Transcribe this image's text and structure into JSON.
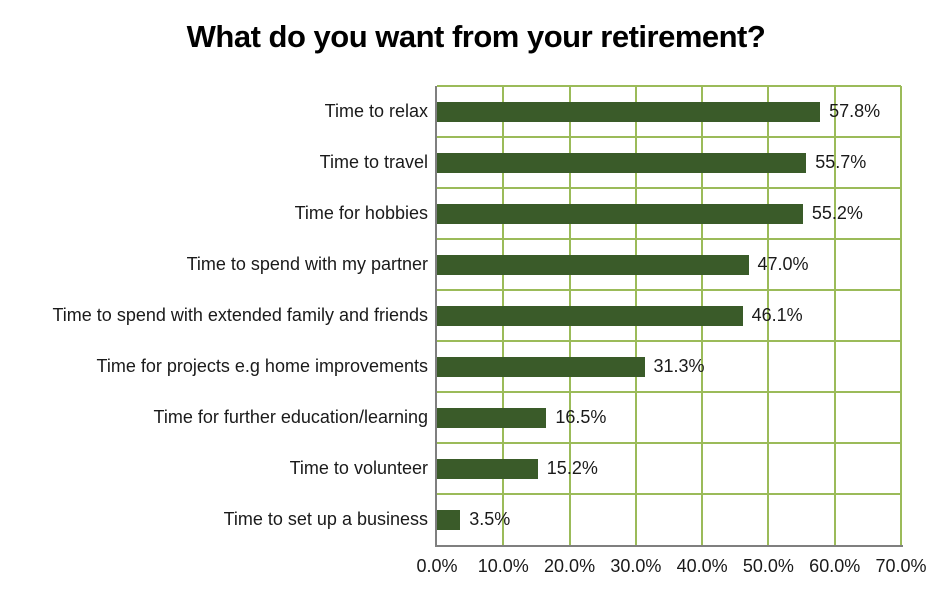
{
  "chart_data": {
    "type": "bar",
    "orientation": "horizontal",
    "title": "What do you want from your retirement?",
    "categories": [
      "Time to relax",
      "Time to travel",
      "Time for hobbies",
      "Time to spend with my partner",
      "Time to spend with extended family and friends",
      "Time for projects e.g home improvements",
      "Time for further education/learning",
      "Time to volunteer",
      "Time to set up a business"
    ],
    "values": [
      57.8,
      55.7,
      55.2,
      47.0,
      46.1,
      31.3,
      16.5,
      15.2,
      3.5
    ],
    "value_labels": [
      "57.8%",
      "55.7%",
      "55.2%",
      "47.0%",
      "46.1%",
      "31.3%",
      "16.5%",
      "15.2%",
      "3.5%"
    ],
    "x_ticks": [
      "0.0%",
      "10.0%",
      "20.0%",
      "30.0%",
      "40.0%",
      "50.0%",
      "60.0%",
      "70.0%"
    ],
    "xlim": [
      0,
      70
    ],
    "grid": true,
    "legend": "none",
    "colors": {
      "bar": "#3A5B29",
      "gridline": "#9BBB59",
      "axis_line": "#7F7F7F",
      "title_text": "#000000",
      "label_text": "#1A1A1A",
      "background": "#FFFFFF"
    }
  }
}
